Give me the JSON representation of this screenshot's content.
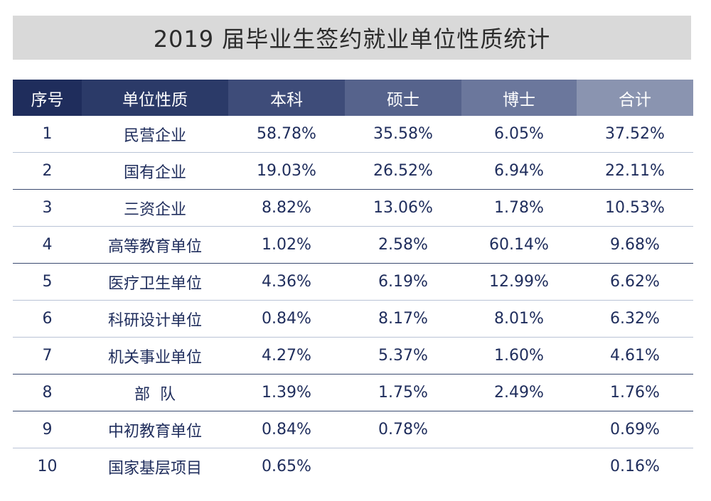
{
  "title": "2019 届毕业生签约就业单位性质统计",
  "headers": [
    "序号",
    "单位性质",
    "本科",
    "硕士",
    "博士",
    "合计"
  ],
  "rows": [
    {
      "no": "1",
      "type": "民营企业",
      "bachelor": "58.78%",
      "master": "35.58%",
      "doctor": "6.05%",
      "total": "37.52%"
    },
    {
      "no": "2",
      "type": "国有企业",
      "bachelor": "19.03%",
      "master": "26.52%",
      "doctor": "6.94%",
      "total": "22.11%"
    },
    {
      "no": "3",
      "type": "三资企业",
      "bachelor": "8.82%",
      "master": "13.06%",
      "doctor": "1.78%",
      "total": "10.53%"
    },
    {
      "no": "4",
      "type": "高等教育单位",
      "bachelor": "1.02%",
      "master": "2.58%",
      "doctor": "60.14%",
      "total": "9.68%"
    },
    {
      "no": "5",
      "type": "医疗卫生单位",
      "bachelor": "4.36%",
      "master": "6.19%",
      "doctor": "12.99%",
      "total": "6.62%"
    },
    {
      "no": "6",
      "type": "科研设计单位",
      "bachelor": "0.84%",
      "master": "8.17%",
      "doctor": "8.01%",
      "total": "6.32%"
    },
    {
      "no": "7",
      "type": "机关事业单位",
      "bachelor": "4.27%",
      "master": "5.37%",
      "doctor": "1.60%",
      "total": "4.61%"
    },
    {
      "no": "8",
      "type": "部  队",
      "bachelor": "1.39%",
      "master": "1.75%",
      "doctor": "2.49%",
      "total": "1.76%"
    },
    {
      "no": "9",
      "type": "中初教育单位",
      "bachelor": "0.84%",
      "master": "0.78%",
      "doctor": "",
      "total": "0.69%"
    },
    {
      "no": "10",
      "type": "国家基层项目",
      "bachelor": "0.65%",
      "master": "",
      "doctor": "",
      "total": "0.16%"
    }
  ]
}
